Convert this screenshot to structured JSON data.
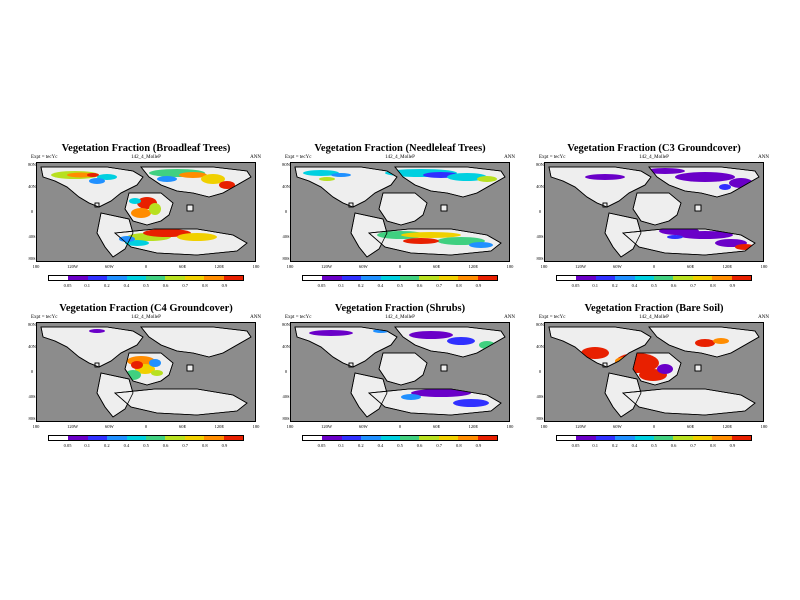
{
  "colorbar": {
    "colors": [
      "#ffffff",
      "#6a00c8",
      "#3030ff",
      "#2090ff",
      "#00d0e0",
      "#40d080",
      "#b8e020",
      "#f0d000",
      "#ff8c00",
      "#e82000"
    ],
    "ocean_color": "#8c8c8c",
    "land_nodata_color": "#eeeeee"
  },
  "panels": [
    {
      "title": "Vegetation Fraction (Broadleaf Trees)",
      "left_label": "Expt = tecYc",
      "center_label": "142_4_MolleP",
      "right_label": "ANN",
      "lat_labels": [
        "80N",
        "40N",
        "0",
        "40S",
        "80S"
      ],
      "lon_labels": [
        "180",
        "120W",
        "60W",
        "0",
        "60E",
        "120E",
        "180"
      ],
      "cbar_labels": [
        "0.05",
        "0.1",
        "0.2",
        "0.4",
        "0.5",
        "0.6",
        "0.7",
        "0.8",
        "0.9"
      ],
      "vegetation": "broadleaf"
    },
    {
      "title": "Vegetation Fraction (Needleleaf Trees)",
      "left_label": "Expt = tecYc",
      "center_label": "142_4_MolleP",
      "right_label": "ANN",
      "lat_labels": [
        "80N",
        "40N",
        "0",
        "40S",
        "80S"
      ],
      "lon_labels": [
        "180",
        "120W",
        "60W",
        "0",
        "60E",
        "120E",
        "180"
      ],
      "cbar_labels": [
        "0.05",
        "0.1",
        "0.2",
        "0.4",
        "0.5",
        "0.6",
        "0.7",
        "0.8",
        "0.9"
      ],
      "vegetation": "needleleaf"
    },
    {
      "title": "Vegetation Fraction (C3 Groundcover)",
      "left_label": "Expt = tecYc",
      "center_label": "142_4_MolleP",
      "right_label": "ANN",
      "lat_labels": [
        "80N",
        "40N",
        "0",
        "40S",
        "80S"
      ],
      "lon_labels": [
        "180",
        "120W",
        "60W",
        "0",
        "60E",
        "120E",
        "180"
      ],
      "cbar_labels": [
        "0.05",
        "0.1",
        "0.2",
        "0.4",
        "0.5",
        "0.6",
        "0.7",
        "0.8",
        "0.9"
      ],
      "vegetation": "c3"
    },
    {
      "title": "Vegetation Fraction (C4 Groundcover)",
      "left_label": "Expt = tecYc",
      "center_label": "142_4_MolleP",
      "right_label": "ANN",
      "lat_labels": [
        "80N",
        "40N",
        "0",
        "40S",
        "80S"
      ],
      "lon_labels": [
        "180",
        "120W",
        "60W",
        "0",
        "60E",
        "120E",
        "180"
      ],
      "cbar_labels": [
        "0.05",
        "0.1",
        "0.2",
        "0.4",
        "0.5",
        "0.6",
        "0.7",
        "0.8",
        "0.9"
      ],
      "vegetation": "c4"
    },
    {
      "title": "Vegetation Fraction (Shrubs)",
      "left_label": "Expt = tecYc",
      "center_label": "142_4_MolleP",
      "right_label": "ANN",
      "lat_labels": [
        "80N",
        "40N",
        "0",
        "40S",
        "80S"
      ],
      "lon_labels": [
        "180",
        "120W",
        "60W",
        "0",
        "60E",
        "120E",
        "180"
      ],
      "cbar_labels": [
        "0.05",
        "0.1",
        "0.2",
        "0.4",
        "0.5",
        "0.6",
        "0.7",
        "0.8",
        "0.9"
      ],
      "vegetation": "shrubs"
    },
    {
      "title": "Vegetation Fraction (Bare Soil)",
      "left_label": "Expt = tecYc",
      "center_label": "142_4_MolleP",
      "right_label": "ANN",
      "lat_labels": [
        "80N",
        "40N",
        "0",
        "40S",
        "80S"
      ],
      "lon_labels": [
        "180",
        "120W",
        "60W",
        "0",
        "60E",
        "120E",
        "180"
      ],
      "cbar_labels": [
        "0.05",
        "0.1",
        "0.2",
        "0.4",
        "0.5",
        "0.6",
        "0.7",
        "0.8",
        "0.9"
      ],
      "vegetation": "bare"
    }
  ]
}
